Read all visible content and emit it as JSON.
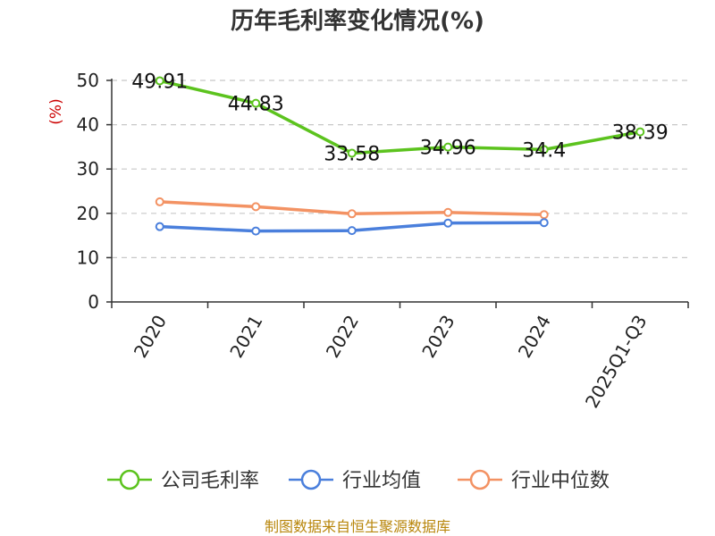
{
  "chart_data": {
    "type": "line",
    "title": "历年毛利率变化情况(%)",
    "ylabel": "(%)",
    "xlabel": "",
    "categories": [
      "2020",
      "2021",
      "2022",
      "2023",
      "2024",
      "2025Q1-Q3"
    ],
    "ylim": [
      0,
      50
    ],
    "yticks": [
      0,
      10,
      20,
      30,
      40,
      50
    ],
    "grid": true,
    "legend_position": "bottom",
    "series": [
      {
        "name": "公司毛利率",
        "color": "#5cc31e",
        "values": [
          49.91,
          44.83,
          33.58,
          34.96,
          34.4,
          38.39
        ],
        "labels": [
          "49.91",
          "44.83",
          "33.58",
          "34.96",
          "34.4",
          "38.39"
        ]
      },
      {
        "name": "行业均值",
        "color": "#4a7fdc",
        "values": [
          17.0,
          16.0,
          16.1,
          17.8,
          17.9,
          null
        ]
      },
      {
        "name": "行业中位数",
        "color": "#f39263",
        "values": [
          22.6,
          21.5,
          19.9,
          20.2,
          19.7,
          null
        ]
      }
    ]
  },
  "source": "制图数据来自恒生聚源数据库"
}
